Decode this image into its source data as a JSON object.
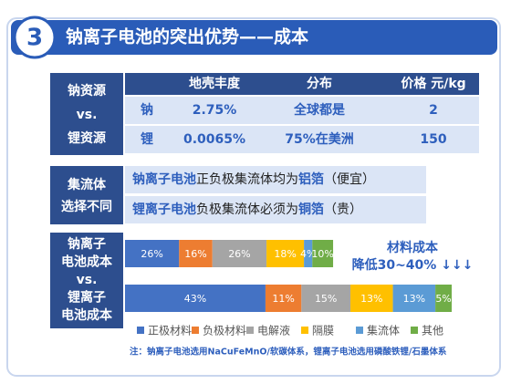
{
  "header": {
    "number": "3",
    "title": "钠离子电池的突出优势——成本"
  },
  "resource": {
    "label": [
      "钠资源",
      "vs.",
      "锂资源"
    ],
    "columns": [
      "地壳丰度",
      "分布",
      "价格 元/kg"
    ],
    "rows": [
      [
        "钠",
        "2.75%",
        "全球都是",
        "2"
      ],
      [
        "锂",
        "0.0065%",
        "75%在美洲",
        "150"
      ]
    ]
  },
  "collector": {
    "label": [
      "集流体",
      "选择不同"
    ],
    "lines": [
      [
        "钠离子电池",
        "正负极集流体均为",
        "铝箔",
        "（便宜）"
      ],
      [
        "锂离子电池",
        "负极集流体必须为",
        "铜箔",
        "（贵）"
      ]
    ]
  },
  "chart_data": {
    "type": "bar",
    "stacked": true,
    "horizontal": true,
    "label": [
      "钠离子",
      "电池成本",
      "vs.",
      "锂离子",
      "电池成本"
    ],
    "series": [
      {
        "name": "正极材料",
        "color": "#4472c4",
        "values": [
          26,
          43
        ],
        "value_labels": [
          "26%",
          "43%"
        ]
      },
      {
        "name": "负极材料",
        "color": "#ed7d31",
        "values": [
          16,
          11
        ],
        "value_labels": [
          "16%",
          "11%"
        ]
      },
      {
        "name": "电解液",
        "color": "#a5a5a5",
        "values": [
          26,
          15
        ],
        "value_labels": [
          "26%",
          "15%"
        ]
      },
      {
        "name": "隔膜",
        "color": "#ffc000",
        "values": [
          18,
          13
        ],
        "value_labels": [
          "18%",
          "13%"
        ]
      },
      {
        "name": "集流体",
        "color": "#5b9bd5",
        "values": [
          4,
          13
        ],
        "value_labels": [
          "4%",
          "13%"
        ]
      },
      {
        "name": "其他",
        "color": "#70ad47",
        "values": [
          10,
          5
        ],
        "value_labels": [
          "10%",
          "5%"
        ]
      }
    ],
    "annotation": [
      "材料成本",
      "降低30~40%  ↓↓↓"
    ],
    "note": "注：钠离子电池选用NaCuFeMnO/软碳体系，锂离子电池选用磷酸铁锂/石墨体系"
  }
}
